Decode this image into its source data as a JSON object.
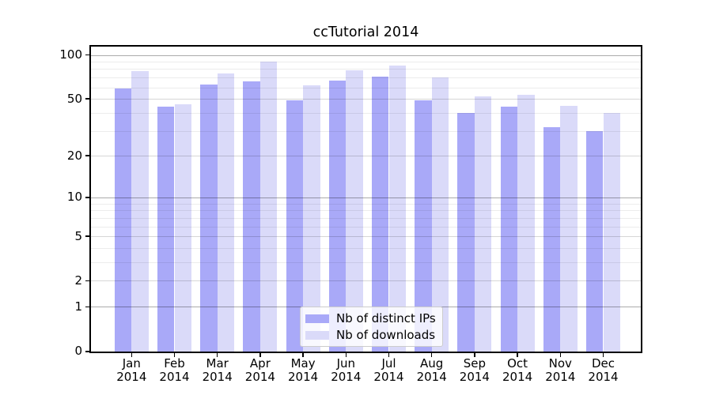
{
  "figure": {
    "title": "ccTutorial 2014"
  },
  "chart_data": {
    "type": "bar",
    "title": "ccTutorial 2014",
    "categories": [
      {
        "month": "Jan",
        "year": "2014"
      },
      {
        "month": "Feb",
        "year": "2014"
      },
      {
        "month": "Mar",
        "year": "2014"
      },
      {
        "month": "Apr",
        "year": "2014"
      },
      {
        "month": "May",
        "year": "2014"
      },
      {
        "month": "Jun",
        "year": "2014"
      },
      {
        "month": "Jul",
        "year": "2014"
      },
      {
        "month": "Aug",
        "year": "2014"
      },
      {
        "month": "Sep",
        "year": "2014"
      },
      {
        "month": "Oct",
        "year": "2014"
      },
      {
        "month": "Nov",
        "year": "2014"
      },
      {
        "month": "Dec",
        "year": "2014"
      }
    ],
    "series": [
      {
        "key": "distinct-ips",
        "name": "Nb of distinct IPs",
        "color": "#a9a9f8",
        "values": [
          59,
          44,
          63,
          66,
          49,
          67,
          71,
          49,
          40,
          44,
          32,
          30
        ]
      },
      {
        "key": "downloads",
        "name": "Nb of downloads",
        "color": "#dadaf9",
        "values": [
          78,
          46,
          75,
          90,
          62,
          79,
          85,
          70,
          52,
          53,
          45,
          40
        ]
      }
    ],
    "xlabel": "",
    "ylabel": "",
    "yscale": "log1p",
    "ylim": [
      0,
      114
    ],
    "yticks": [
      0,
      1,
      2,
      5,
      10,
      20,
      50,
      100
    ],
    "yticks_decade": [
      1,
      10,
      100
    ],
    "yticks_minor": [
      3,
      4,
      6,
      7,
      8,
      9,
      30,
      40,
      60,
      70,
      80,
      90
    ],
    "grid": "both",
    "legend_position": "lower center"
  }
}
